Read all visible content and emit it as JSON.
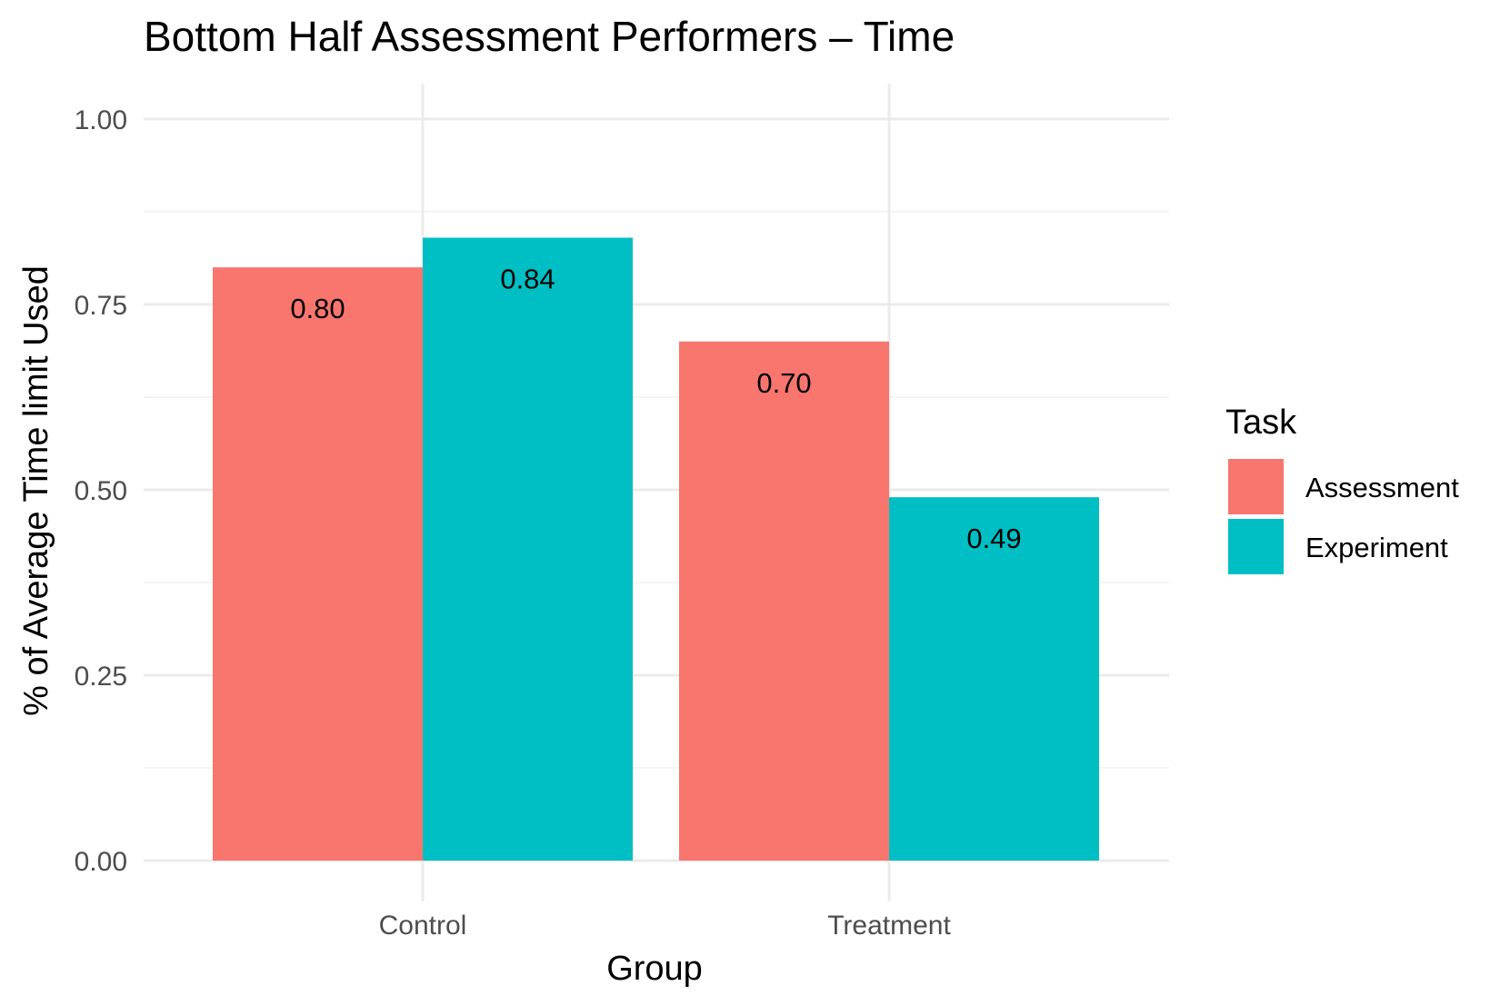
{
  "chart_data": {
    "type": "bar",
    "title": "Bottom Half Assessment Performers – Time",
    "xlabel": "Group",
    "ylabel": "% of Average Time limit Used",
    "categories": [
      "Control",
      "Treatment"
    ],
    "series": [
      {
        "name": "Assessment",
        "color": "#F8766D",
        "values": [
          0.8,
          0.7
        ],
        "labels": [
          "0.80",
          "0.70"
        ]
      },
      {
        "name": "Experiment",
        "color": "#00BFC4",
        "values": [
          0.84,
          0.49
        ],
        "labels": [
          "0.84",
          "0.49"
        ]
      }
    ],
    "ylim": [
      0,
      1.0
    ],
    "yticks": [
      0.0,
      0.25,
      0.5,
      0.75,
      1.0
    ],
    "ytick_labels": [
      "0.00",
      "0.25",
      "0.50",
      "0.75",
      "1.00"
    ],
    "grid": true,
    "legend": {
      "title": "Task",
      "position": "right"
    }
  }
}
